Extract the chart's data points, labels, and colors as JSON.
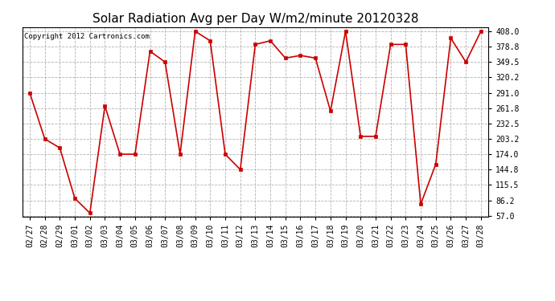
{
  "title": "Solar Radiation Avg per Day W/m2/minute 20120328",
  "copyright_text": "Copyright 2012 Cartronics.com",
  "dates": [
    "02/27",
    "02/28",
    "02/29",
    "03/01",
    "03/02",
    "03/03",
    "03/04",
    "03/05",
    "03/06",
    "03/07",
    "03/08",
    "03/09",
    "03/10",
    "03/11",
    "03/12",
    "03/13",
    "03/14",
    "03/15",
    "03/16",
    "03/17",
    "03/18",
    "03/19",
    "03/20",
    "03/21",
    "03/22",
    "03/23",
    "03/24",
    "03/25",
    "03/26",
    "03/27",
    "03/28"
  ],
  "values": [
    291.0,
    203.2,
    186.0,
    90.0,
    62.0,
    266.0,
    174.0,
    174.0,
    370.0,
    349.5,
    174.0,
    408.0,
    390.0,
    174.0,
    144.8,
    383.0,
    390.0,
    357.0,
    362.0,
    357.0,
    256.0,
    408.0,
    208.0,
    208.0,
    383.0,
    383.0,
    79.0,
    155.0,
    395.0,
    349.5,
    408.0
  ],
  "line_color": "#cc0000",
  "marker_color": "#cc0000",
  "bg_color": "#ffffff",
  "plot_bg_color": "#ffffff",
  "grid_color": "#aaaaaa",
  "ymin": 57.0,
  "ymax": 408.0,
  "yticks": [
    57.0,
    86.2,
    115.5,
    144.8,
    174.0,
    203.2,
    232.5,
    261.8,
    291.0,
    320.2,
    349.5,
    378.8,
    408.0
  ],
  "title_fontsize": 11,
  "tick_fontsize": 7,
  "copyright_fontsize": 6.5
}
